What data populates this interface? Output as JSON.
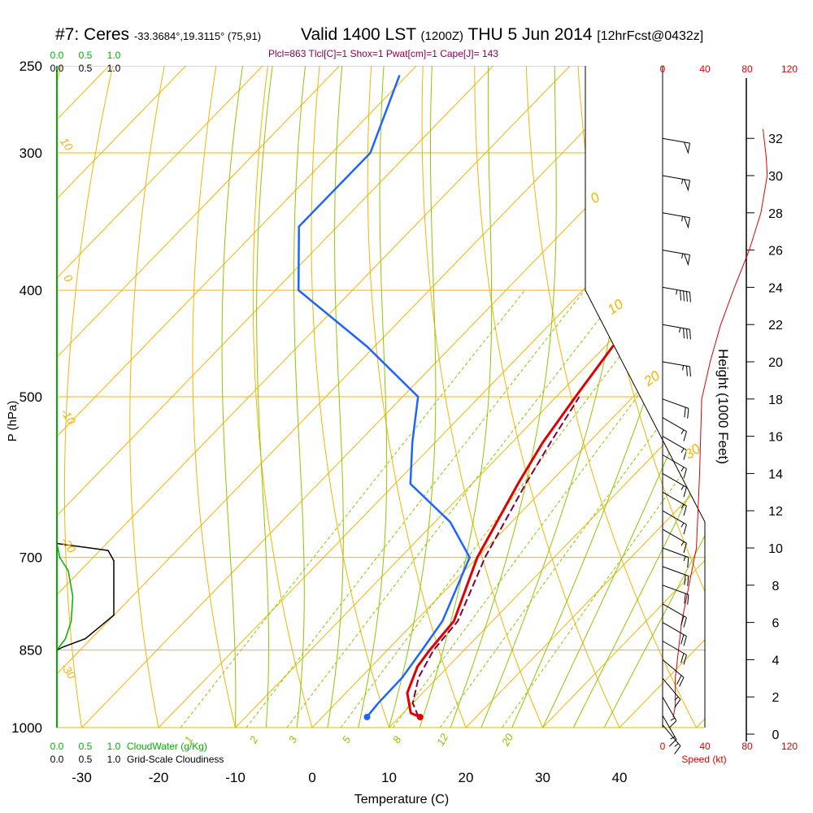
{
  "header": {
    "station": "#7: Ceres",
    "coords": "-33.3684°,19.3115° (75,91)",
    "valid": "Valid 1400 LST",
    "zulu": "(1200Z)",
    "date": "THU 5 Jun 2014",
    "forecast": "[12hrFcst@0432z]",
    "indices": "Plcl=863 Tlcl[C]=1 Shox=1 Pwat[cm]=1 Cape[J]= 143"
  },
  "colors": {
    "isobar": "#f5b400",
    "dry_adiabat": "#f5b400",
    "moist_adiabat": "#8cc800",
    "mixing_ratio": "#8cc800",
    "temperature": "#e00000",
    "dewpoint": "#1e64ff",
    "parcel": "#800040",
    "cloud_water": "#00b000",
    "cloudiness": "#000000",
    "wind_speed": "#e00000",
    "title_magenta": "#8b0052"
  },
  "chart_data": {
    "type": "line",
    "title": "#7: Ceres  Valid 1400 LST (1200Z) THU 5 Jun 2014",
    "xlabel": "Temperature (C)",
    "ylabel": "P (hPa)",
    "y2label": "Height (1000 Feet)",
    "pressure_ticks": [
      "250",
      "300",
      "400",
      "500",
      "700",
      "850",
      "1000"
    ],
    "temperature_ticks": [
      "-30",
      "-20",
      "-10",
      "0",
      "10",
      "20",
      "30",
      "40"
    ],
    "height_ticks": [
      "0",
      "2",
      "4",
      "6",
      "8",
      "10",
      "12",
      "14",
      "16",
      "18",
      "20",
      "22",
      "24",
      "26",
      "28",
      "30",
      "32"
    ],
    "speed_ticks": [
      "0",
      "40",
      "80",
      "120"
    ],
    "speed_label": "Speed (kt)",
    "cloud_ticks": [
      "0.0",
      "0.5",
      "1.0"
    ],
    "cloud_water_label": "CloudWater (g/Kg)",
    "cloudiness_label": "Grid-Scale Cloudiness",
    "mixing_ratio_labels": [
      "1",
      "2",
      "3",
      "5",
      "8",
      "12",
      "20"
    ],
    "dry_adiabat_labels_left": [
      "10",
      "0",
      "-10",
      "-20",
      "-30"
    ],
    "dry_adiabat_labels_right": [
      "0",
      "10",
      "20",
      "30"
    ],
    "series": [
      {
        "name": "Temperature",
        "pressure": [
          978,
          970,
          930,
          880,
          850,
          800,
          700,
          600,
          550,
          500,
          450,
          400,
          350,
          300,
          255
        ],
        "temp": [
          12.7,
          11.0,
          8.0,
          6.0,
          5.5,
          5.0,
          0.0,
          -4.0,
          -6.0,
          -7.5,
          -9.0,
          -9.3,
          -8.5,
          -8.0,
          -8.5
        ]
      },
      {
        "name": "Dewpoint",
        "pressure": [
          980,
          950,
          900,
          850,
          800,
          700,
          650,
          600,
          550,
          500,
          450,
          400,
          350,
          300,
          255
        ],
        "temp": [
          5.8,
          5.5,
          5.4,
          4.5,
          3.5,
          -1.0,
          -8.0,
          -18.0,
          -23.0,
          -28.0,
          -41.0,
          -57.0,
          -65.0,
          -65.0,
          -71.0
        ]
      },
      {
        "name": "Parcel",
        "pressure": [
          978,
          950,
          900,
          850,
          800,
          700,
          600,
          550,
          500
        ],
        "temp": [
          12.5,
          10.0,
          7.5,
          6.0,
          5.5,
          1.0,
          -3.0,
          -5.0,
          -7.0
        ]
      }
    ],
    "parcel_start": {
      "temp": 12.7,
      "dewpoint": 5.8,
      "pressure": 978
    },
    "cloudiness_profile": {
      "pressure": [
        850,
        845,
        830,
        790,
        705,
        690,
        680
      ],
      "value": [
        0.0,
        0.1,
        0.5,
        1.0,
        1.0,
        0.9,
        0.0
      ]
    },
    "cloud_water_profile": {
      "pressure": [
        850,
        830,
        800,
        760,
        720,
        700,
        680
      ],
      "value": [
        0.0,
        0.15,
        0.25,
        0.28,
        0.2,
        0.05,
        0.0
      ]
    },
    "wind_speed_profile": {
      "height_kft": [
        0.9,
        1.5,
        3,
        6,
        10,
        14,
        18,
        20,
        22,
        24,
        26,
        28,
        30,
        31,
        32.5
      ],
      "speed_kt": [
        10,
        12,
        12,
        18,
        32,
        35,
        37,
        45,
        55,
        68,
        82,
        93,
        99,
        98,
        95
      ]
    },
    "wind_barbs": [
      {
        "height_kft": 0.5,
        "dir": 320,
        "speed": 15
      },
      {
        "height_kft": 1,
        "dir": 330,
        "speed": 15
      },
      {
        "height_kft": 2,
        "dir": 330,
        "speed": 15
      },
      {
        "height_kft": 3,
        "dir": 320,
        "speed": 15
      },
      {
        "height_kft": 4,
        "dir": 310,
        "speed": 20
      },
      {
        "height_kft": 5,
        "dir": 300,
        "speed": 20
      },
      {
        "height_kft": 6,
        "dir": 300,
        "speed": 20
      },
      {
        "height_kft": 7,
        "dir": 300,
        "speed": 20
      },
      {
        "height_kft": 8,
        "dir": 290,
        "speed": 20
      },
      {
        "height_kft": 9,
        "dir": 290,
        "speed": 20
      },
      {
        "height_kft": 10,
        "dir": 290,
        "speed": 15
      },
      {
        "height_kft": 11,
        "dir": 300,
        "speed": 15
      },
      {
        "height_kft": 12,
        "dir": 300,
        "speed": 15
      },
      {
        "height_kft": 13,
        "dir": 300,
        "speed": 15
      },
      {
        "height_kft": 14,
        "dir": 300,
        "speed": 15
      },
      {
        "height_kft": 15,
        "dir": 300,
        "speed": 15
      },
      {
        "height_kft": 16,
        "dir": 300,
        "speed": 15
      },
      {
        "height_kft": 17,
        "dir": 300,
        "speed": 15
      },
      {
        "height_kft": 18,
        "dir": 290,
        "speed": 20
      },
      {
        "height_kft": 20,
        "dir": 280,
        "speed": 25
      },
      {
        "height_kft": 22,
        "dir": 280,
        "speed": 35
      },
      {
        "height_kft": 24,
        "dir": 280,
        "speed": 45
      },
      {
        "height_kft": 26,
        "dir": 280,
        "speed": 55
      },
      {
        "height_kft": 28,
        "dir": 280,
        "speed": 55
      },
      {
        "height_kft": 30,
        "dir": 280,
        "speed": 55
      },
      {
        "height_kft": 32,
        "dir": 280,
        "speed": 50
      }
    ]
  }
}
